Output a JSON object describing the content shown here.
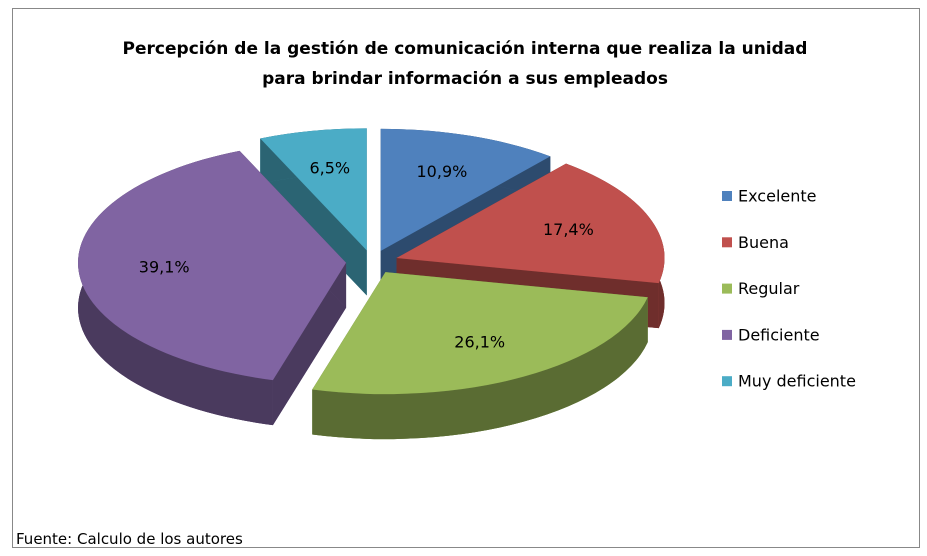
{
  "chart_data": {
    "type": "pie",
    "title": "Percepción de la gestión de comunicación  interna que realiza la unidad para brindar información  a sus empleados",
    "categories": [
      "Excelente",
      "Buena",
      "Regular",
      "Deficiente",
      "Muy deficiente"
    ],
    "values": [
      10.9,
      17.4,
      26.1,
      39.1,
      6.5
    ],
    "value_labels": [
      "10,9%",
      "17,4%",
      "26,1%",
      "39,1%",
      "6,5%"
    ],
    "colors": [
      "#4f81bd",
      "#c0504d",
      "#9bbb59",
      "#8064a2",
      "#4bacc6"
    ],
    "legend": "right",
    "source": "Fuente: Calculo de los autores"
  }
}
